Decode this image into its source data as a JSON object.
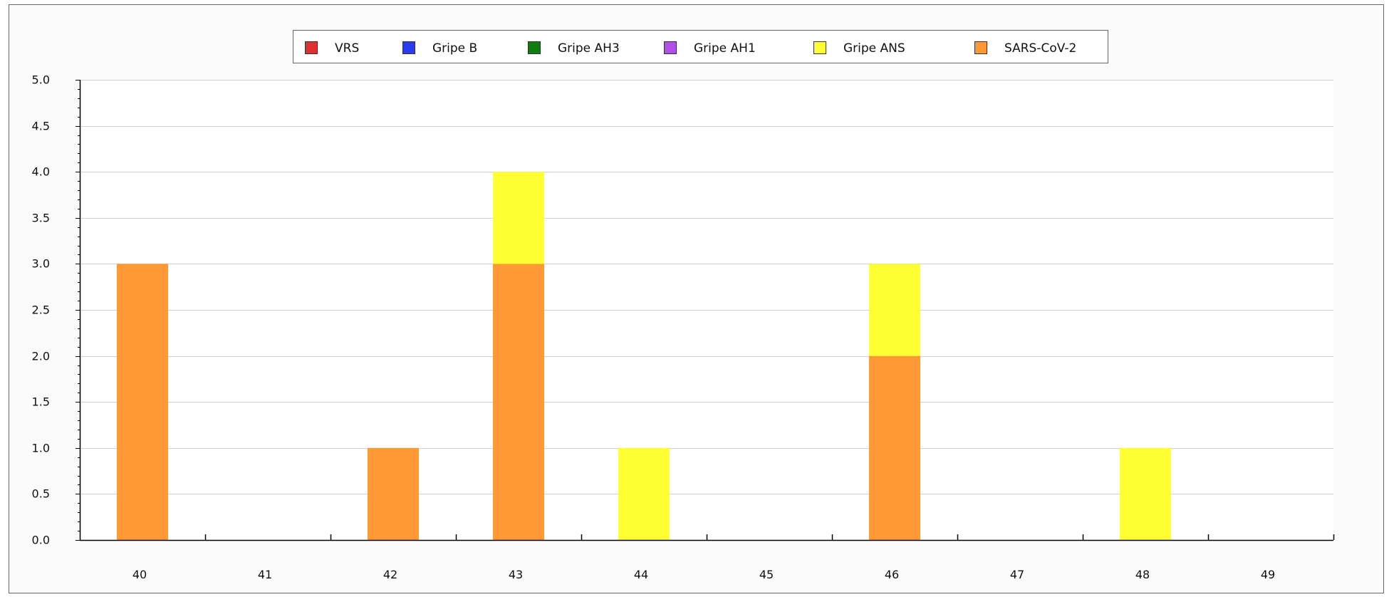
{
  "chart_data": {
    "type": "bar",
    "stacked": true,
    "categories": [
      "40",
      "41",
      "42",
      "43",
      "44",
      "45",
      "46",
      "47",
      "48",
      "49"
    ],
    "series": [
      {
        "name": "VRS",
        "color": "#e03030",
        "values": [
          0,
          0,
          0,
          0,
          0,
          0,
          0,
          0,
          0,
          0
        ]
      },
      {
        "name": "Gripe B",
        "color": "#2b3bf0",
        "values": [
          0,
          0,
          0,
          0,
          0,
          0,
          0,
          0,
          0,
          0
        ]
      },
      {
        "name": "Gripe AH3",
        "color": "#0e7f0e",
        "values": [
          0,
          0,
          0,
          0,
          0,
          0,
          0,
          0,
          0,
          0
        ]
      },
      {
        "name": "Gripe AH1",
        "color": "#b050e8",
        "values": [
          0,
          0,
          0,
          0,
          0,
          0,
          0,
          0,
          0,
          0
        ]
      },
      {
        "name": "SARS-CoV-2",
        "color": "#ff9933",
        "values": [
          3,
          0,
          1,
          3,
          0,
          0,
          2,
          0,
          0,
          0
        ]
      },
      {
        "name": "Gripe ANS",
        "color": "#ffff33",
        "values": [
          0,
          0,
          0,
          1,
          1,
          0,
          1,
          0,
          1,
          0
        ]
      }
    ],
    "legend_order": [
      "VRS",
      "Gripe B",
      "Gripe AH3",
      "Gripe AH1",
      "Gripe ANS",
      "SARS-CoV-2"
    ],
    "ylim": [
      0,
      5
    ],
    "yticks": [
      "0.0",
      "0.5",
      "1.0",
      "1.5",
      "2.0",
      "2.5",
      "3.0",
      "3.5",
      "4.0",
      "4.5",
      "5.0"
    ],
    "grid": true,
    "legend_position": "top-center",
    "title": "",
    "xlabel": "",
    "ylabel": ""
  }
}
